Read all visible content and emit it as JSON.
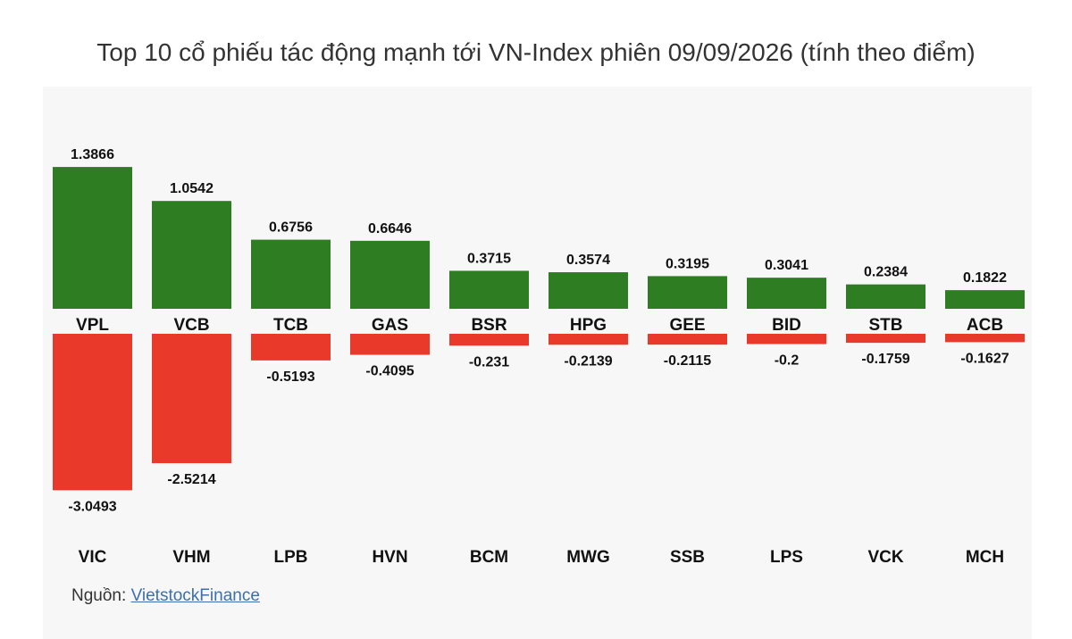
{
  "title": "Top 10 cổ phiếu tác động mạnh tới VN-Index phiên 09/09/2026 (tính theo điểm)",
  "source": {
    "label": "Nguồn:",
    "link_text": "VietstockFinance"
  },
  "colors": {
    "positive": "#2e7d22",
    "negative": "#e8392a"
  },
  "chart_data": {
    "type": "bar",
    "title": "Top 10 cổ phiếu tác động mạnh tới VN-Index phiên 09/09/2026 (tính theo điểm)",
    "ylim": [
      -3.0493,
      1.3866
    ],
    "series": [
      {
        "categories": [
          "VPL",
          "VCB",
          "TCB",
          "GAS",
          "BSR",
          "HPG",
          "GEE",
          "BID",
          "STB",
          "ACB"
        ],
        "values": [
          1.3866,
          1.0542,
          0.6756,
          0.6646,
          0.3715,
          0.3574,
          0.3195,
          0.3041,
          0.2384,
          0.1822
        ],
        "labels": [
          "1.3866",
          "1.0542",
          "0.6756",
          "0.6646",
          "0.3715",
          "0.3574",
          "0.3195",
          "0.3041",
          "0.2384",
          "0.1822"
        ]
      },
      {
        "categories": [
          "VIC",
          "VHM",
          "LPB",
          "HVN",
          "BCM",
          "MWG",
          "SSB",
          "LPS",
          "VCK",
          "MCH"
        ],
        "values": [
          -3.0493,
          -2.5214,
          -0.5193,
          -0.4095,
          -0.231,
          -0.2139,
          -0.2115,
          -0.2,
          -0.1759,
          -0.1627
        ],
        "labels": [
          "-3.0493",
          "-2.5214",
          "-0.5193",
          "-0.4095",
          "-0.231",
          "-0.2139",
          "-0.2115",
          "-0.2",
          "-0.1759",
          "-0.1627"
        ]
      }
    ]
  }
}
